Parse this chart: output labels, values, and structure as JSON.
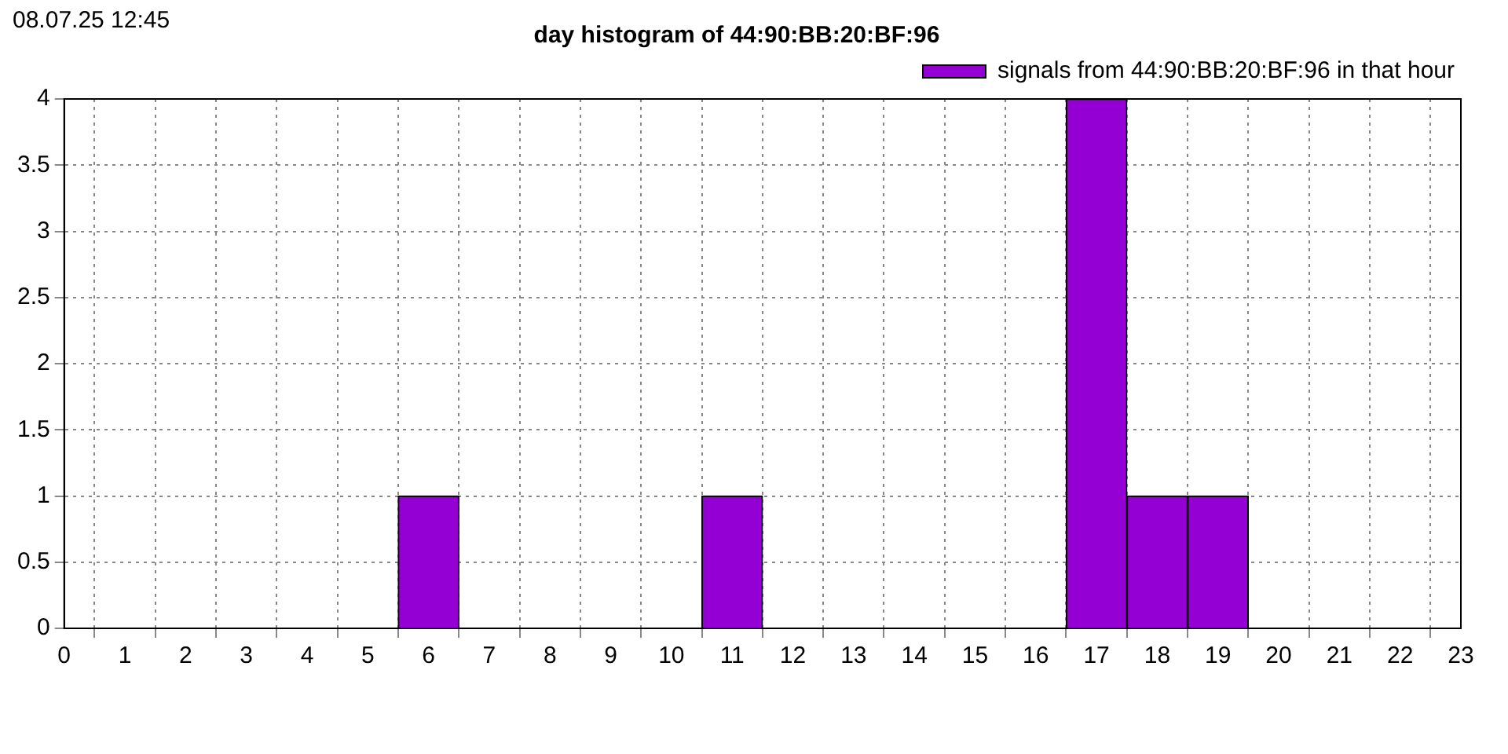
{
  "chart_data": {
    "type": "bar",
    "title": "day histogram of 44:90:BB:20:BF:96",
    "annotations": [
      "08.07.25 12:45"
    ],
    "x": [
      6,
      11,
      17,
      18,
      19
    ],
    "series": [
      {
        "name": "signals from 44:90:BB:20:BF:96 in that hour",
        "color": "#9400d3",
        "values": [
          1,
          1,
          4,
          1,
          1
        ]
      }
    ],
    "xlim": [
      0,
      23
    ],
    "xticks": [
      0,
      1,
      2,
      3,
      4,
      5,
      6,
      7,
      8,
      9,
      10,
      11,
      12,
      13,
      14,
      15,
      16,
      17,
      18,
      19,
      20,
      21,
      22,
      23
    ],
    "ylim": [
      0,
      4
    ],
    "yticks": [
      0,
      0.5,
      1,
      1.5,
      2,
      2.5,
      3,
      3.5,
      4
    ],
    "grid": true,
    "legend": "top right"
  }
}
